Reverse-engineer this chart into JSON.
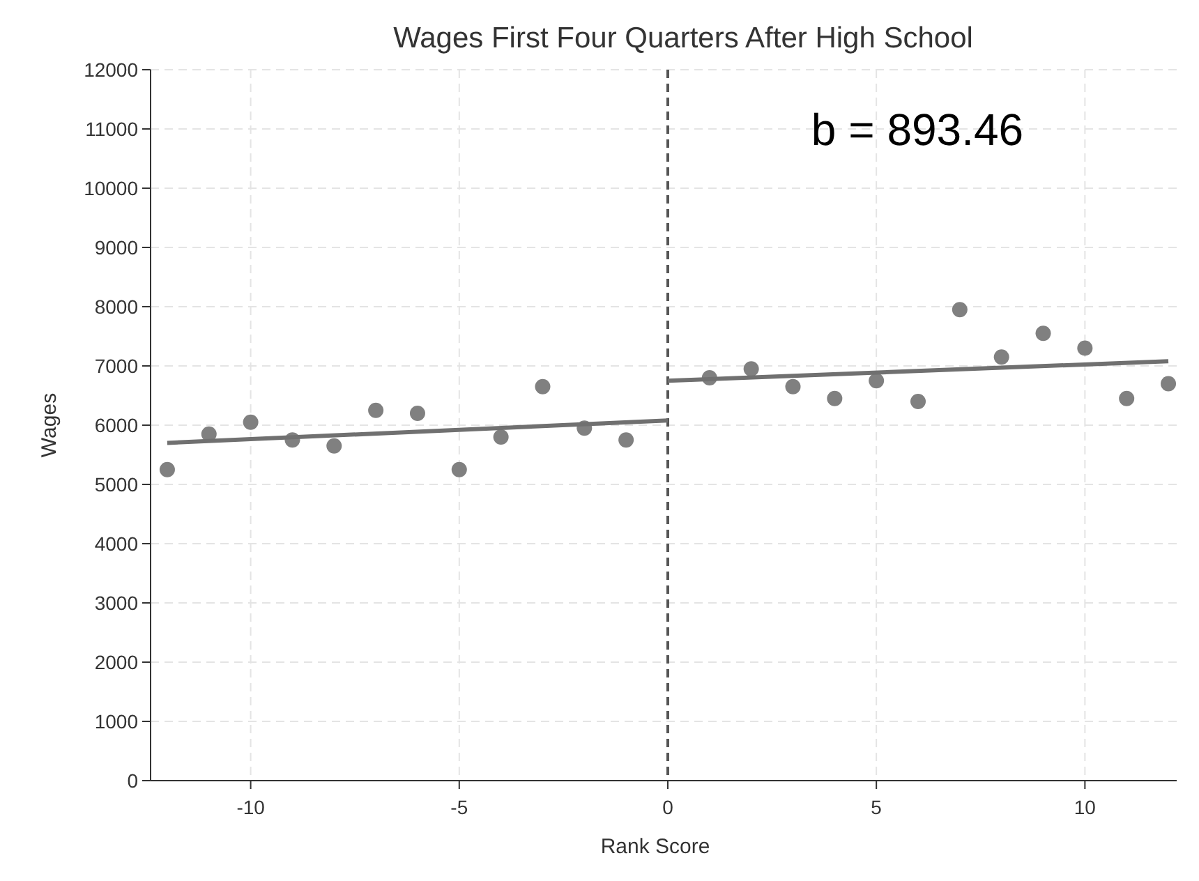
{
  "chart_data": {
    "type": "scatter",
    "title": "Wages First Four Quarters After High School",
    "xlabel": "Rank Score",
    "ylabel": "Wages",
    "xlim": [
      -12.4,
      12.2
    ],
    "xticks": [
      -10,
      -5,
      0,
      5,
      10
    ],
    "ylim": [
      0,
      12000
    ],
    "yticks": [
      0,
      1000,
      2000,
      3000,
      4000,
      5000,
      6000,
      7000,
      8000,
      9000,
      10000,
      11000,
      12000
    ],
    "grid": true,
    "marker": "circle",
    "series": [
      {
        "color": "#808080",
        "x": [
          -12,
          -11,
          -10,
          -9,
          -8,
          -7,
          -6,
          -5,
          -4,
          -3,
          -2,
          -1,
          1,
          2,
          3,
          4,
          5,
          6,
          7,
          8,
          9,
          10,
          11,
          12
        ],
        "values": [
          5250,
          5850,
          6050,
          5750,
          5650,
          6250,
          6200,
          5250,
          5800,
          6650,
          5950,
          5750,
          6800,
          6950,
          6650,
          6450,
          6750,
          6400,
          7950,
          7150,
          7550,
          7300,
          6450,
          6700
        ]
      },
      {
        "type": "line",
        "color": "#707070",
        "marker": "none",
        "x": [
          -12,
          0
        ],
        "values": [
          5700,
          6080
        ]
      },
      {
        "type": "line",
        "color": "#707070",
        "marker": "none",
        "x": [
          0,
          12
        ],
        "values": [
          6750,
          7080
        ]
      }
    ],
    "ref_lines": [
      {
        "axis": "x",
        "value": 0,
        "color": "#555555",
        "line_style": "dashed"
      }
    ],
    "annotations": [
      "b = 893.46"
    ]
  }
}
